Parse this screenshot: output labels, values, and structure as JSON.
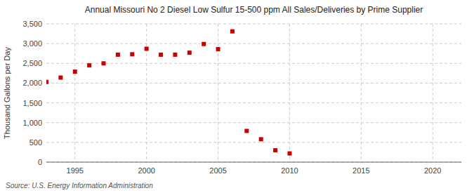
{
  "chart_data": {
    "type": "scatter",
    "title": "Annual Missouri No 2 Diesel Low Sulfur 15-500 ppm All Sales/Deliveries by Prime Supplier",
    "y_label": "Thousand Gallons per Day",
    "annotations": [
      "Source: U.S. Energy Information Administration"
    ],
    "x": [
      1993,
      1994,
      1995,
      1996,
      1997,
      1998,
      1999,
      2000,
      2001,
      2002,
      2003,
      2004,
      2005,
      2006,
      2007,
      2008,
      2009,
      2010
    ],
    "values": [
      2030,
      2140,
      2290,
      2450,
      2500,
      2720,
      2730,
      2870,
      2720,
      2720,
      2770,
      2990,
      2860,
      3310,
      790,
      580,
      300,
      220
    ],
    "color": "#cc0000",
    "marker": "square",
    "xlim": [
      1993,
      2022
    ],
    "ylim": [
      0,
      3500
    ],
    "xticks": [
      1995,
      2000,
      2005,
      2010,
      2015,
      2020
    ],
    "yticks": [
      0,
      500,
      {
        "value": 1000,
        "label": "1,000"
      },
      {
        "value": 1500,
        "label": "1,500"
      },
      {
        "value": 2000,
        "label": "2,000"
      },
      {
        "value": 2500,
        "label": "2,500"
      },
      {
        "value": 3000,
        "label": "3,000"
      },
      {
        "value": 3500,
        "label": "3,500"
      }
    ],
    "grid": true
  }
}
